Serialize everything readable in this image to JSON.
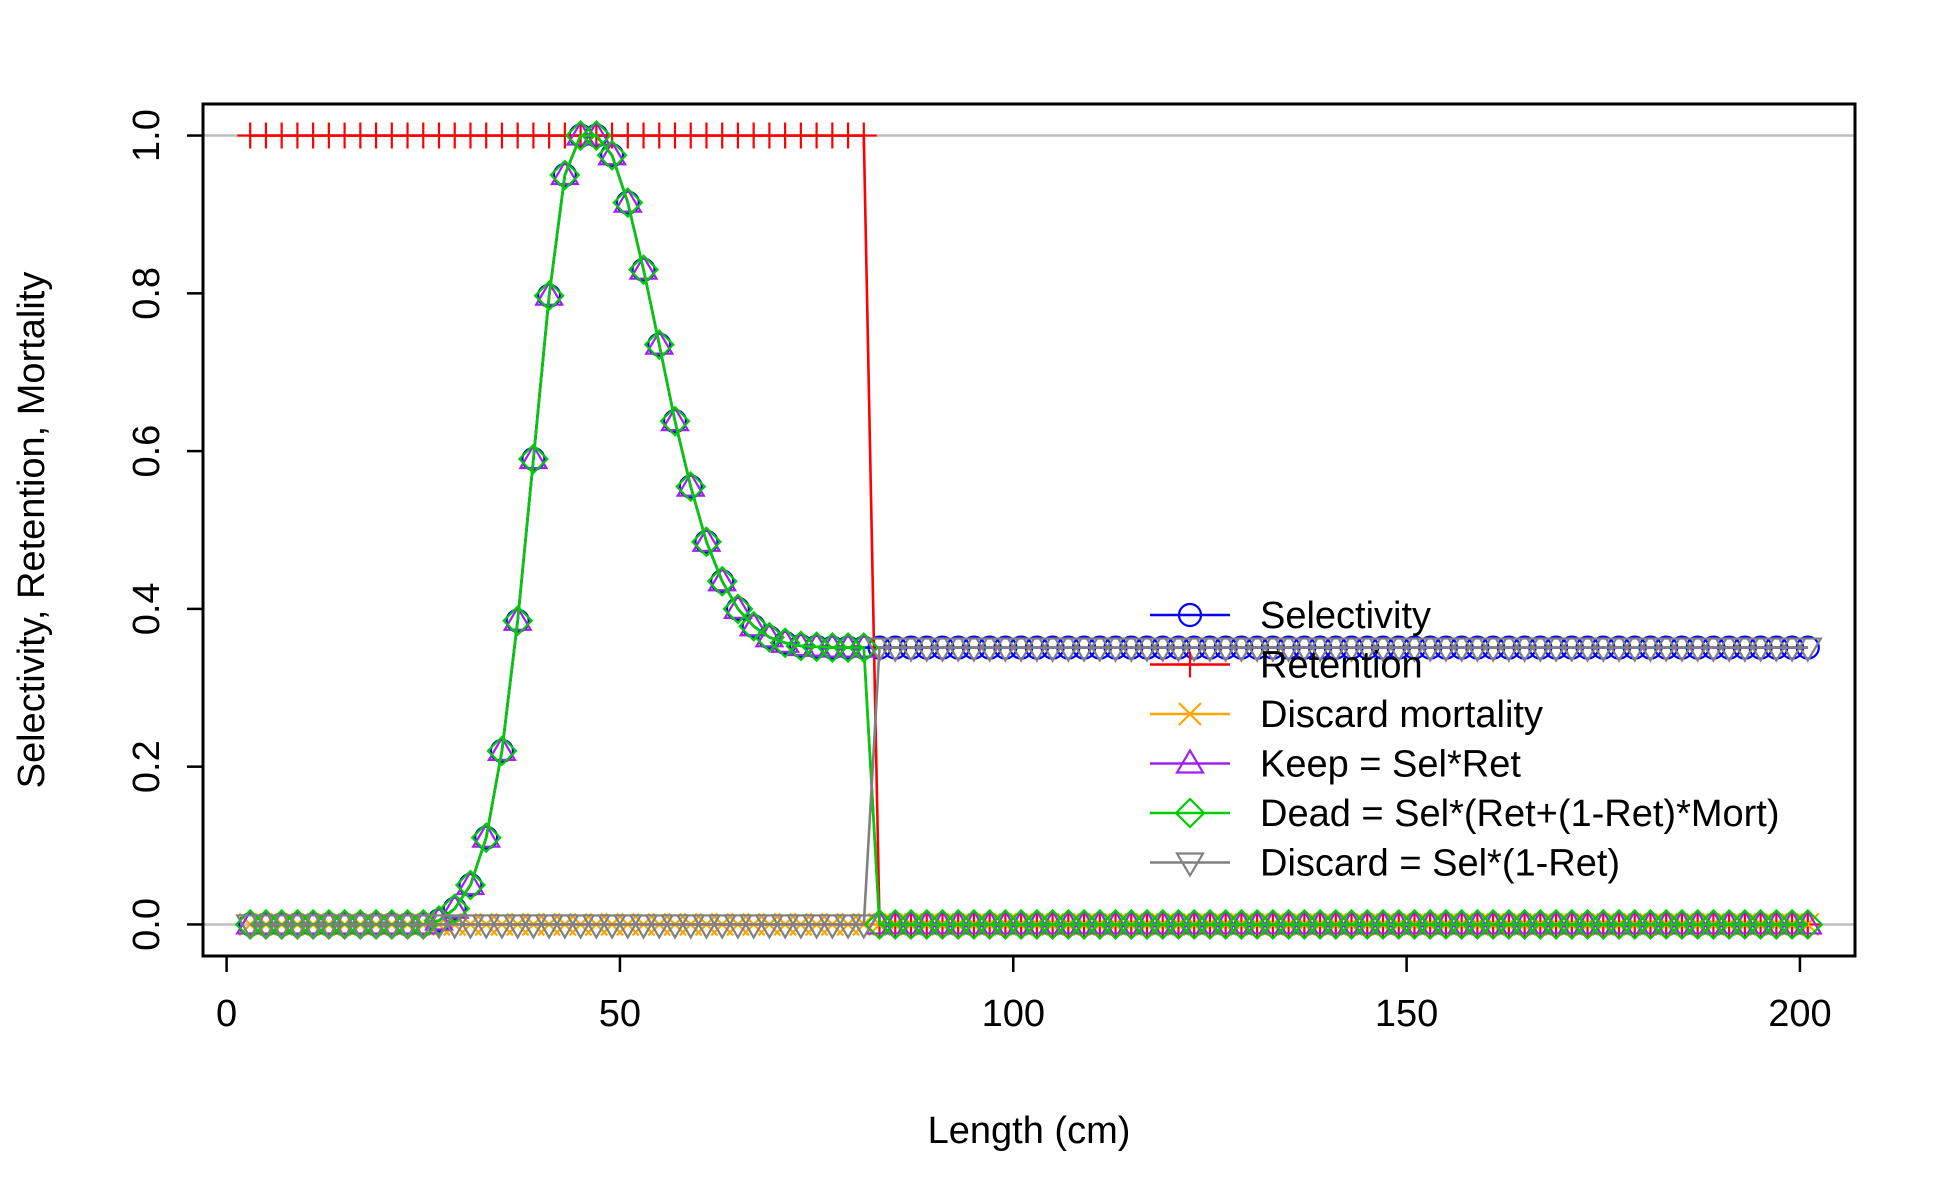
{
  "chart_data": {
    "type": "line",
    "title": "",
    "xlabel": "Length (cm)",
    "ylabel": "Selectivity, Retention, Mortality",
    "xlim": [
      -3,
      207
    ],
    "ylim": [
      -0.04,
      1.04
    ],
    "x_ticks": [
      0,
      50,
      100,
      150,
      200
    ],
    "y_ticks": [
      0.0,
      0.2,
      0.4,
      0.6,
      0.8,
      1.0
    ],
    "x_tick_labels": [
      "0",
      "50",
      "100",
      "150",
      "200"
    ],
    "y_tick_labels": [
      "0.0",
      "0.2",
      "0.4",
      "0.6",
      "0.8",
      "1.0"
    ],
    "reference_lines_y": [
      0,
      1
    ],
    "grid": false,
    "legend_position": "right",
    "x_start": 3,
    "x_step": 2,
    "selectivity": [
      0.0,
      0.0,
      0.0,
      0.0,
      0.0,
      0.0,
      0.0,
      0.0,
      0.0,
      0.0,
      0.0,
      0.0,
      0.005,
      0.02,
      0.05,
      0.11,
      0.22,
      0.385,
      0.59,
      0.797,
      0.95,
      1.0,
      1.0,
      0.975,
      0.915,
      0.83,
      0.735,
      0.638,
      0.555,
      0.485,
      0.435,
      0.4,
      0.378,
      0.364,
      0.357,
      0.353,
      0.352,
      0.351,
      0.351,
      0.351,
      0.351,
      0.351,
      0.351,
      0.351,
      0.351,
      0.351,
      0.351,
      0.351,
      0.351,
      0.351,
      0.351,
      0.351,
      0.351,
      0.351,
      0.351,
      0.351,
      0.351,
      0.351,
      0.351,
      0.351,
      0.351,
      0.351,
      0.351,
      0.351,
      0.351,
      0.351,
      0.351,
      0.351,
      0.351,
      0.351,
      0.351,
      0.351,
      0.351,
      0.351,
      0.351,
      0.351,
      0.351,
      0.351,
      0.351,
      0.351,
      0.351,
      0.351,
      0.351,
      0.351,
      0.351,
      0.351,
      0.351,
      0.351,
      0.351,
      0.351,
      0.351,
      0.351,
      0.351,
      0.351,
      0.351,
      0.351,
      0.351,
      0.351,
      0.351,
      0.351
    ],
    "retention_cutoff_length": 82,
    "discard_mortality": 0.0,
    "series": [
      {
        "name": "Selectivity",
        "color": "#0000FF",
        "marker": "circle"
      },
      {
        "name": "Retention",
        "color": "#FF0000",
        "marker": "plus"
      },
      {
        "name": "Discard mortality",
        "color": "#FFA500",
        "marker": "cross"
      },
      {
        "name": "Keep = Sel*Ret",
        "color": "#A020F0",
        "marker": "triangle-up"
      },
      {
        "name": "Dead = Sel*(Ret+(1-Ret)*Mort)",
        "color": "#00CD00",
        "marker": "diamond"
      },
      {
        "name": "Discard = Sel*(1-Ret)",
        "color": "#808080",
        "marker": "triangle-down"
      }
    ],
    "reference_line_color": "#BEBEBE"
  }
}
